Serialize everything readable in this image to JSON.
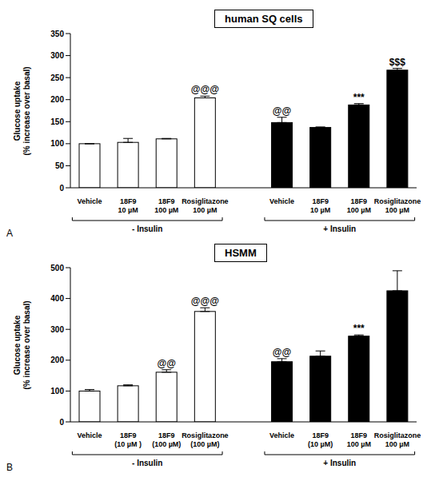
{
  "chart_data": [
    {
      "type": "bar",
      "title": "human SQ cells",
      "panel": "A",
      "y_label": "Glucose uptake (% increase over basal)",
      "ylim": [
        0,
        350
      ],
      "yticks": [
        0,
        50,
        100,
        150,
        200,
        250,
        300,
        350
      ],
      "groups": [
        {
          "label": "- Insulin",
          "color": "#ffffff",
          "categories": [
            "Vehicle",
            "18F9 10 µM",
            "18F9 100 µM",
            "Rosiglitazone 100 µM"
          ],
          "values": [
            100,
            103,
            111,
            204
          ],
          "errors": [
            0,
            9,
            1,
            4
          ],
          "annotations": [
            null,
            null,
            null,
            "@@@"
          ]
        },
        {
          "label": "+ Insulin",
          "color": "#000000",
          "categories": [
            "Vehicle",
            "18F9 10 µM",
            "18F9 100 µM",
            "Rosiglitazone 100 µM"
          ],
          "values": [
            148,
            137,
            188,
            267
          ],
          "errors": [
            12,
            1,
            3,
            4
          ],
          "annotations": [
            "@@",
            null,
            "***",
            "$$$"
          ]
        }
      ]
    },
    {
      "type": "bar",
      "title": "HSMM",
      "panel": "B",
      "y_label": "Glucose uptake (% increase over basal)",
      "ylim": [
        0,
        500
      ],
      "yticks": [
        0,
        100,
        200,
        300,
        400,
        500
      ],
      "groups": [
        {
          "label": "- Insulin",
          "color": "#ffffff",
          "categories": [
            "Vehicle",
            "18F9 (10 µM )",
            "18F9 (100 µM)",
            "Rosiglitazone (100 µM)"
          ],
          "values": [
            100,
            117,
            161,
            358
          ],
          "errors": [
            5,
            3,
            8,
            12
          ],
          "annotations": [
            null,
            null,
            "@@",
            "@@@"
          ]
        },
        {
          "label": "+ Insulin",
          "color": "#000000",
          "categories": [
            "Vehicle",
            "18F9 (10 µM)",
            "18F9 100 µM",
            "Rosiglitazone 100 µM"
          ],
          "values": [
            195,
            213,
            278,
            425
          ],
          "errors": [
            10,
            17,
            4,
            65
          ],
          "annotations": [
            "@@",
            null,
            "***",
            null
          ]
        }
      ]
    }
  ]
}
